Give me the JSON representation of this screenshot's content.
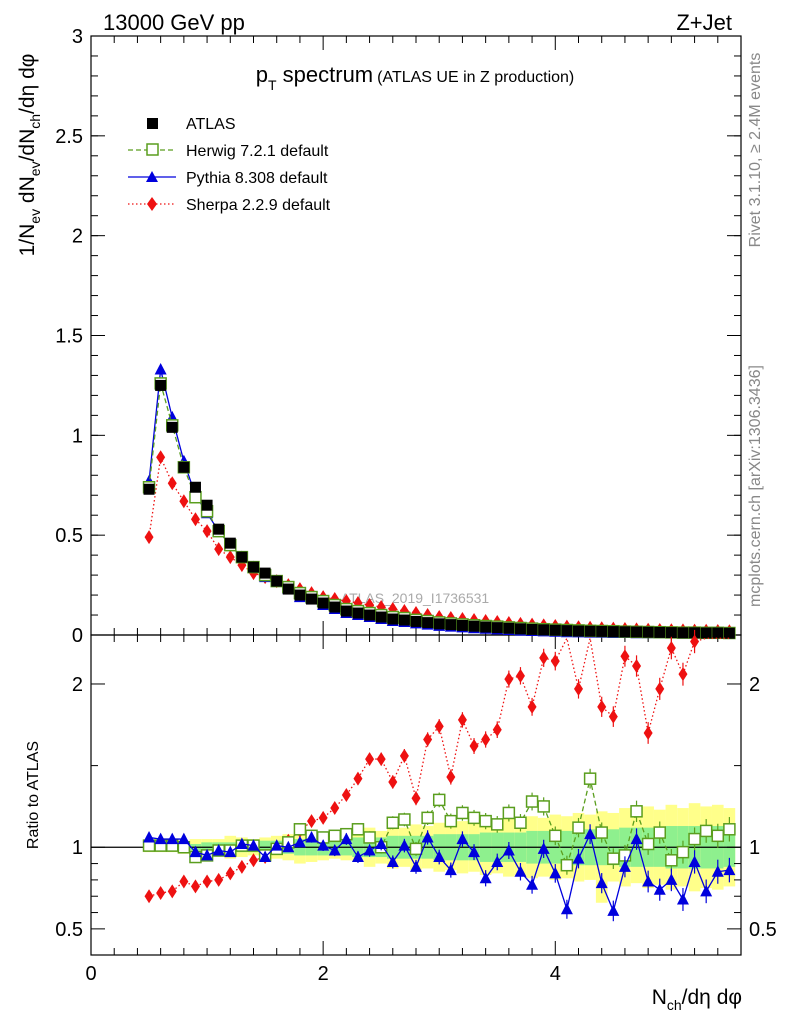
{
  "header": {
    "left": "13000 GeV pp",
    "right": "Z+Jet"
  },
  "side_labels": {
    "upper": "Rivet 3.1.10, ≥ 2.4M events",
    "lower": "mcplots.cern.ch [arXiv:1306.3436]"
  },
  "watermark": "ATLAS_2019_I1736531",
  "colors": {
    "atlas": "#000000",
    "herwig": "#5a9e1e",
    "pythia": "#0000dd",
    "sherpa": "#ee1111",
    "band_yellow": "#ffff8a",
    "band_green": "#8ef08e"
  },
  "chart_data": [
    {
      "type": "scatter",
      "panel": "main",
      "title": {
        "p": "p",
        "T": "T",
        "rest": " spectrum",
        "small": "(ATLAS UE in Z production)"
      },
      "ylabel": {
        "a": "1/N",
        "ev": "ev",
        "b": " dN",
        "ev2": "ev",
        "c": "/dN",
        "ch": "ch",
        "d": "/dη dφ"
      },
      "xlim": [
        0,
        5.6
      ],
      "ylim": [
        0,
        3
      ],
      "yticks": [
        "0",
        "0.5",
        "1",
        "1.5",
        "2",
        "2.5",
        "3"
      ],
      "legend": {
        "placement": "top-left",
        "entries": [
          "ATLAS",
          "Herwig 7.2.1 default",
          "Pythia 8.308 default",
          "Sherpa 2.2.9 default"
        ]
      },
      "x": [
        0.5,
        0.6,
        0.7,
        0.8,
        0.9,
        1.0,
        1.1,
        1.2,
        1.3,
        1.4,
        1.5,
        1.6,
        1.7,
        1.8,
        1.9,
        2.0,
        2.1,
        2.2,
        2.3,
        2.4,
        2.5,
        2.6,
        2.7,
        2.8,
        2.9,
        3.0,
        3.1,
        3.2,
        3.3,
        3.4,
        3.5,
        3.6,
        3.7,
        3.8,
        3.9,
        4.0,
        4.1,
        4.2,
        4.3,
        4.4,
        4.5,
        4.6,
        4.7,
        4.8,
        4.9,
        5.0,
        5.1,
        5.2,
        5.3,
        5.4,
        5.5
      ],
      "series": [
        {
          "name": "ATLAS",
          "values": [
            0.73,
            1.25,
            1.04,
            0.84,
            0.74,
            0.65,
            0.53,
            0.46,
            0.39,
            0.34,
            0.31,
            0.27,
            0.23,
            0.2,
            0.18,
            0.16,
            0.14,
            0.12,
            0.11,
            0.1,
            0.09,
            0.08,
            0.075,
            0.068,
            0.062,
            0.056,
            0.052,
            0.048,
            0.044,
            0.04,
            0.037,
            0.034,
            0.031,
            0.028,
            0.026,
            0.024,
            0.022,
            0.02,
            0.019,
            0.018,
            0.017,
            0.016,
            0.015,
            0.014,
            0.013,
            0.012,
            0.011,
            0.011,
            0.01,
            0.01,
            0.009
          ]
        },
        {
          "name": "Herwig 7.2.1 default",
          "values": [
            0.74,
            1.26,
            1.05,
            0.84,
            0.69,
            0.62,
            0.52,
            0.45,
            0.39,
            0.34,
            0.3,
            0.27,
            0.24,
            0.21,
            0.19,
            0.17,
            0.15,
            0.13,
            0.12,
            0.11,
            0.1,
            0.09,
            0.085,
            0.076,
            0.07,
            0.063,
            0.058,
            0.053,
            0.049,
            0.045,
            0.042,
            0.038,
            0.035,
            0.032,
            0.029,
            0.027,
            0.025,
            0.023,
            0.021,
            0.02,
            0.019,
            0.017,
            0.016,
            0.015,
            0.014,
            0.013,
            0.012,
            0.012,
            0.011,
            0.011,
            0.01
          ]
        },
        {
          "name": "Pythia 8.308 default",
          "values": [
            0.77,
            1.33,
            1.09,
            0.87,
            0.7,
            0.61,
            0.52,
            0.45,
            0.39,
            0.34,
            0.29,
            0.27,
            0.23,
            0.19,
            0.18,
            0.15,
            0.13,
            0.11,
            0.1,
            0.09,
            0.08,
            0.07,
            0.065,
            0.058,
            0.052,
            0.046,
            0.042,
            0.038,
            0.034,
            0.031,
            0.028,
            0.025,
            0.022,
            0.02,
            0.018,
            0.016,
            0.014,
            0.013,
            0.012,
            0.011,
            0.01,
            0.01,
            0.009,
            0.009,
            0.008,
            0.008,
            0.007,
            0.007,
            0.006,
            0.006,
            0.006
          ]
        },
        {
          "name": "Sherpa 2.2.9 default",
          "values": [
            0.49,
            0.89,
            0.76,
            0.67,
            0.58,
            0.52,
            0.43,
            0.39,
            0.35,
            0.31,
            0.29,
            0.27,
            0.25,
            0.23,
            0.21,
            0.19,
            0.18,
            0.17,
            0.16,
            0.15,
            0.14,
            0.13,
            0.12,
            0.11,
            0.1,
            0.09,
            0.085,
            0.08,
            0.075,
            0.07,
            0.065,
            0.06,
            0.056,
            0.052,
            0.048,
            0.045,
            0.042,
            0.039,
            0.036,
            0.034,
            0.032,
            0.03,
            0.028,
            0.026,
            0.025,
            0.024,
            0.023,
            0.022,
            0.021,
            0.02,
            0.019
          ]
        }
      ]
    },
    {
      "type": "scatter",
      "panel": "ratio",
      "ylabel": "Ratio to ATLAS",
      "xlabel": {
        "a": "N",
        "ch": "ch",
        "b": "/dη dφ"
      },
      "xlim": [
        0,
        5.6
      ],
      "ylim": [
        0.34,
        2.3
      ],
      "xticks": [
        "0",
        "2",
        "4"
      ],
      "yticks": [
        "0.5",
        "1",
        "2"
      ],
      "band_yellow": [
        [
          0.97,
          1.03
        ],
        [
          0.97,
          1.03
        ],
        [
          0.97,
          1.03
        ],
        [
          0.96,
          1.04
        ],
        [
          0.95,
          1.05
        ],
        [
          0.94,
          1.05
        ],
        [
          0.95,
          1.05
        ],
        [
          0.93,
          1.07
        ],
        [
          0.94,
          1.06
        ],
        [
          0.95,
          1.05
        ],
        [
          0.94,
          1.06
        ],
        [
          0.93,
          1.07
        ],
        [
          0.92,
          1.08
        ],
        [
          0.9,
          1.1
        ],
        [
          0.91,
          1.09
        ],
        [
          0.92,
          1.08
        ],
        [
          0.93,
          1.07
        ],
        [
          0.92,
          1.08
        ],
        [
          0.91,
          1.09
        ],
        [
          0.88,
          1.12
        ],
        [
          0.9,
          1.1
        ],
        [
          0.87,
          1.13
        ],
        [
          0.88,
          1.12
        ],
        [
          0.86,
          1.14
        ],
        [
          0.87,
          1.13
        ],
        [
          0.85,
          1.15
        ],
        [
          0.86,
          1.14
        ],
        [
          0.84,
          1.16
        ],
        [
          0.85,
          1.15
        ],
        [
          0.83,
          1.17
        ],
        [
          0.84,
          1.16
        ],
        [
          0.82,
          1.18
        ],
        [
          0.83,
          1.17
        ],
        [
          0.81,
          1.19
        ],
        [
          0.82,
          1.18
        ],
        [
          0.8,
          1.2
        ],
        [
          0.81,
          1.19
        ],
        [
          0.79,
          1.21
        ],
        [
          0.8,
          1.2
        ],
        [
          0.66,
          1.22
        ],
        [
          0.79,
          1.21
        ],
        [
          0.76,
          1.24
        ],
        [
          0.78,
          1.22
        ],
        [
          0.75,
          1.25
        ],
        [
          0.77,
          1.23
        ],
        [
          0.74,
          1.26
        ],
        [
          0.76,
          1.24
        ],
        [
          0.73,
          1.27
        ],
        [
          0.75,
          1.25
        ],
        [
          0.74,
          1.26
        ],
        [
          0.76,
          1.24
        ]
      ],
      "band_green": [
        [
          0.99,
          1.01
        ],
        [
          0.99,
          1.01
        ],
        [
          0.99,
          1.01
        ],
        [
          0.98,
          1.02
        ],
        [
          0.98,
          1.02
        ],
        [
          0.97,
          1.03
        ],
        [
          0.97,
          1.03
        ],
        [
          0.97,
          1.03
        ],
        [
          0.97,
          1.03
        ],
        [
          0.97,
          1.03
        ],
        [
          0.96,
          1.04
        ],
        [
          0.96,
          1.04
        ],
        [
          0.96,
          1.04
        ],
        [
          0.95,
          1.05
        ],
        [
          0.95,
          1.05
        ],
        [
          0.95,
          1.05
        ],
        [
          0.95,
          1.05
        ],
        [
          0.95,
          1.05
        ],
        [
          0.94,
          1.06
        ],
        [
          0.94,
          1.06
        ],
        [
          0.94,
          1.06
        ],
        [
          0.93,
          1.07
        ],
        [
          0.93,
          1.07
        ],
        [
          0.93,
          1.07
        ],
        [
          0.93,
          1.07
        ],
        [
          0.92,
          1.08
        ],
        [
          0.92,
          1.08
        ],
        [
          0.92,
          1.08
        ],
        [
          0.92,
          1.08
        ],
        [
          0.91,
          1.09
        ],
        [
          0.91,
          1.09
        ],
        [
          0.91,
          1.09
        ],
        [
          0.91,
          1.09
        ],
        [
          0.9,
          1.1
        ],
        [
          0.9,
          1.1
        ],
        [
          0.9,
          1.1
        ],
        [
          0.9,
          1.1
        ],
        [
          0.89,
          1.11
        ],
        [
          0.89,
          1.11
        ],
        [
          0.89,
          1.11
        ],
        [
          0.89,
          1.11
        ],
        [
          0.88,
          1.12
        ],
        [
          0.88,
          1.12
        ],
        [
          0.88,
          1.12
        ],
        [
          0.88,
          1.12
        ],
        [
          0.87,
          1.13
        ],
        [
          0.87,
          1.13
        ],
        [
          0.87,
          1.13
        ],
        [
          0.87,
          1.13
        ],
        [
          0.87,
          1.13
        ],
        [
          0.88,
          1.12
        ]
      ],
      "series": [
        {
          "name": "Herwig 7.2.1 default",
          "values": [
            1.01,
            1.01,
            1.01,
            1.0,
            0.94,
            0.95,
            0.98,
            0.98,
            1.01,
            1.01,
            0.95,
            0.99,
            1.03,
            1.11,
            1.07,
            1.06,
            1.07,
            1.08,
            1.11,
            1.06,
            1.0,
            1.15,
            1.17,
            0.99,
            1.18,
            1.29,
            1.16,
            1.21,
            1.18,
            1.16,
            1.14,
            1.21,
            1.15,
            1.28,
            1.25,
            1.07,
            0.89,
            1.12,
            1.42,
            1.09,
            0.93,
            0.95,
            1.22,
            1.02,
            1.09,
            0.92,
            0.97,
            1.05,
            1.1,
            1.07,
            1.11
          ]
        },
        {
          "name": "Pythia 8.308 default",
          "values": [
            1.06,
            1.05,
            1.05,
            1.05,
            0.97,
            0.95,
            0.98,
            0.97,
            1.02,
            1.01,
            0.94,
            1.01,
            1.0,
            1.03,
            1.06,
            1.01,
            0.98,
            1.05,
            0.94,
            0.98,
            1.02,
            0.91,
            1.01,
            0.88,
            1.06,
            0.94,
            0.86,
            1.05,
            0.97,
            0.81,
            0.91,
            0.98,
            0.85,
            0.77,
            0.99,
            0.84,
            0.62,
            0.93,
            1.08,
            0.78,
            0.61,
            0.88,
            1.05,
            0.79,
            0.74,
            0.8,
            0.68,
            0.91,
            0.73,
            0.85,
            0.86
          ]
        },
        {
          "name": "Sherpa 2.2.9 default",
          "values": [
            0.7,
            0.72,
            0.73,
            0.79,
            0.76,
            0.79,
            0.8,
            0.84,
            0.88,
            0.92,
            0.94,
            1.0,
            1.04,
            1.1,
            1.16,
            1.18,
            1.24,
            1.32,
            1.42,
            1.54,
            1.54,
            1.4,
            1.56,
            1.3,
            1.66,
            1.74,
            1.43,
            1.78,
            1.62,
            1.66,
            1.72,
            2.03,
            2.05,
            1.86,
            2.16,
            2.14,
            2.28,
            1.97,
            2.28,
            1.86,
            1.8,
            2.17,
            2.11,
            1.7,
            1.97,
            2.22,
            2.06,
            2.26,
            2.28,
            2.28,
            2.28
          ]
        }
      ]
    }
  ]
}
